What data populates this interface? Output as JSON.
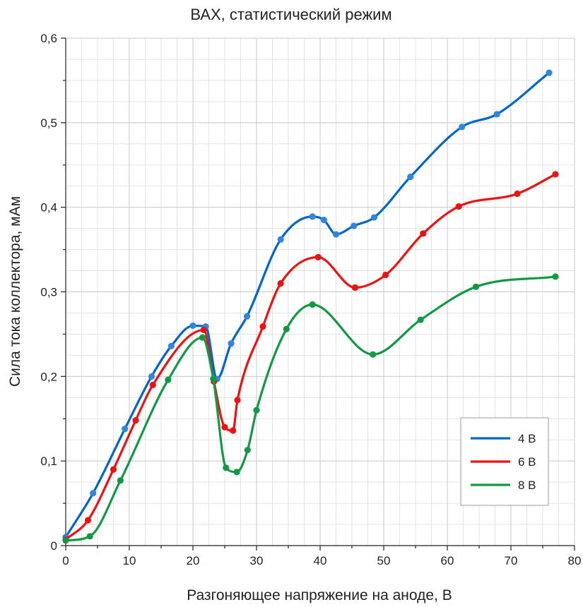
{
  "chart_data": {
    "type": "line",
    "title": "ВАХ, статистический режим",
    "xlabel": "Разгоняющее напряжение на аноде, В",
    "ylabel": "Сила тока коллектора, мАм",
    "xlim": [
      0,
      80
    ],
    "ylim": [
      0,
      0.6
    ],
    "x_ticks": [
      0,
      10,
      20,
      30,
      40,
      50,
      60,
      70,
      80
    ],
    "y_ticks": [
      0,
      0.1,
      0.2,
      0.3,
      0.4,
      0.5,
      0.6
    ],
    "x_tick_labels": [
      "0",
      "10",
      "20",
      "30",
      "40",
      "50",
      "60",
      "70",
      "80"
    ],
    "y_tick_labels": [
      "0",
      "0,1",
      "0,2",
      "0,3",
      "0,4",
      "0,5",
      "0,6"
    ],
    "grid": true,
    "legend_position": "bottom-right",
    "series": [
      {
        "name": "4 В",
        "color": "#0066cc",
        "marker_color": "#2e86e0",
        "points": [
          [
            0,
            0.01
          ],
          [
            4.3,
            0.062
          ],
          [
            9.3,
            0.138
          ],
          [
            13.5,
            0.2
          ],
          [
            16.6,
            0.236
          ],
          [
            20,
            0.26
          ],
          [
            22,
            0.259
          ],
          [
            23.8,
            0.197
          ],
          [
            26,
            0.239
          ],
          [
            28.5,
            0.271
          ],
          [
            33.8,
            0.362
          ],
          [
            38.8,
            0.389
          ],
          [
            40.6,
            0.385
          ],
          [
            42.5,
            0.368
          ],
          [
            45.3,
            0.378
          ],
          [
            48.5,
            0.388
          ],
          [
            54.2,
            0.436
          ],
          [
            62.3,
            0.495
          ],
          [
            67.8,
            0.51
          ],
          [
            76,
            0.559
          ]
        ]
      },
      {
        "name": "6 В",
        "color": "#ee1111",
        "marker_color": "#ee1111",
        "points": [
          [
            0,
            0.007
          ],
          [
            3.5,
            0.03
          ],
          [
            7.5,
            0.09
          ],
          [
            11,
            0.148
          ],
          [
            13.7,
            0.19
          ],
          [
            21.7,
            0.255
          ],
          [
            23.3,
            0.194
          ],
          [
            25,
            0.14
          ],
          [
            26.3,
            0.136
          ],
          [
            27,
            0.172
          ],
          [
            31,
            0.259
          ],
          [
            33.8,
            0.31
          ],
          [
            39.7,
            0.341
          ],
          [
            45.5,
            0.305
          ],
          [
            50.3,
            0.32
          ],
          [
            56.2,
            0.369
          ],
          [
            61.8,
            0.401
          ],
          [
            71,
            0.416
          ],
          [
            77,
            0.439
          ]
        ]
      },
      {
        "name": "8 В",
        "color": "#119944",
        "marker_color": "#119944",
        "points": [
          [
            0,
            0.006
          ],
          [
            3.8,
            0.011
          ],
          [
            8.6,
            0.077
          ],
          [
            16.1,
            0.196
          ],
          [
            21.5,
            0.246
          ],
          [
            23.2,
            0.197
          ],
          [
            25.2,
            0.092
          ],
          [
            26.9,
            0.087
          ],
          [
            28.6,
            0.113
          ],
          [
            30,
            0.16
          ],
          [
            34.7,
            0.256
          ],
          [
            38.8,
            0.285
          ],
          [
            48.3,
            0.226
          ],
          [
            55.8,
            0.267
          ],
          [
            64.5,
            0.306
          ],
          [
            77,
            0.318
          ]
        ]
      }
    ]
  }
}
